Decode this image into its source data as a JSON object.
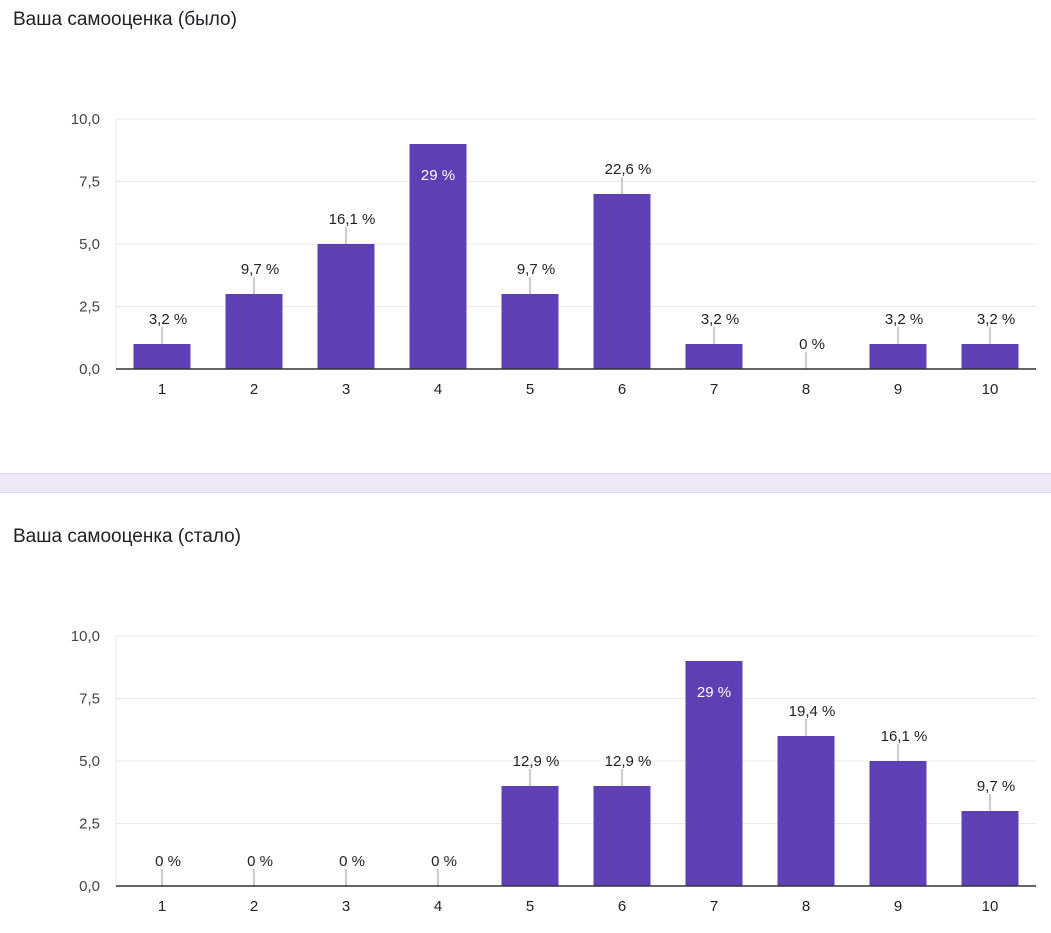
{
  "chart_data": [
    {
      "type": "bar",
      "title": "Ваша самооценка (было)",
      "categories": [
        "1",
        "2",
        "3",
        "4",
        "5",
        "6",
        "7",
        "8",
        "9",
        "10"
      ],
      "values": [
        1,
        3,
        5,
        9,
        3,
        7,
        1,
        0,
        1,
        1
      ],
      "data_labels": [
        "3,2 %",
        "9,7 %",
        "16,1 %",
        "29 %",
        "9,7 %",
        "22,6 %",
        "3,2 %",
        "0 %",
        "3,2 %",
        "3,2 %"
      ],
      "yticks": [
        "0,0",
        "2,5",
        "5,0",
        "7,5",
        "10,0"
      ],
      "ylim": [
        0,
        10
      ],
      "grid": true,
      "color": "#5e3fb4"
    },
    {
      "type": "bar",
      "title": "Ваша самооценка (стало)",
      "categories": [
        "1",
        "2",
        "3",
        "4",
        "5",
        "6",
        "7",
        "8",
        "9",
        "10"
      ],
      "values": [
        0,
        0,
        0,
        0,
        4,
        4,
        9,
        6,
        5,
        3
      ],
      "data_labels": [
        "0 %",
        "0 %",
        "0 %",
        "0 %",
        "12,9 %",
        "12,9 %",
        "29 %",
        "19,4 %",
        "16,1 %",
        "9,7 %"
      ],
      "yticks": [
        "0,0",
        "2,5",
        "5,0",
        "7,5",
        "10,0"
      ],
      "ylim": [
        0,
        10
      ],
      "grid": true,
      "color": "#5e3fb4"
    }
  ]
}
